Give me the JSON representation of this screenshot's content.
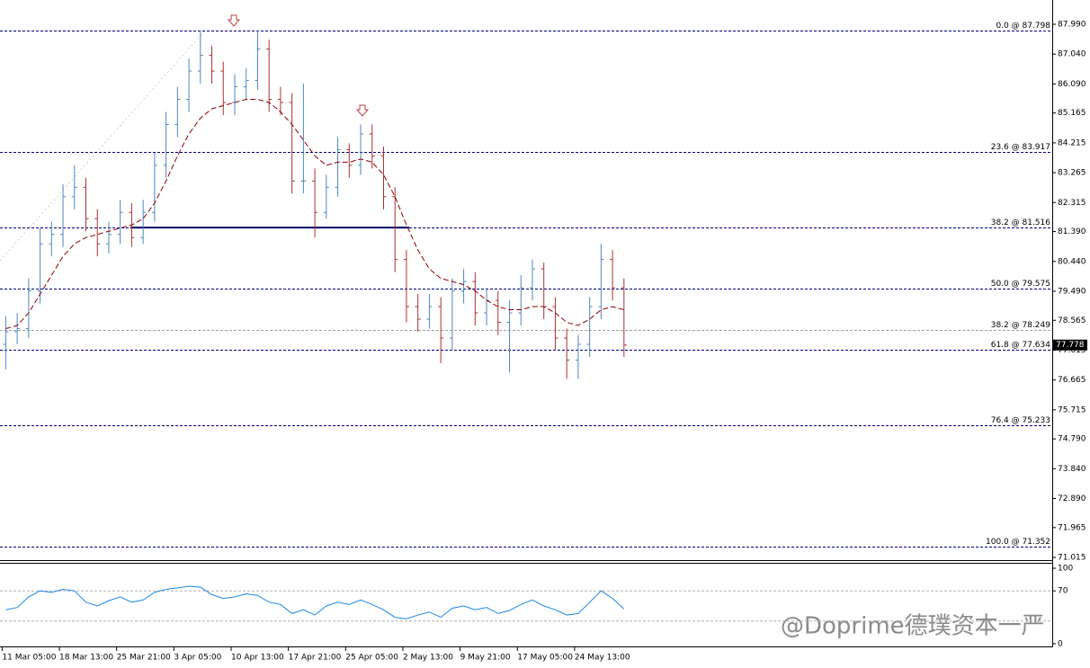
{
  "chart_data": [
    {
      "type": "ohlc",
      "categories": [
        "11 Mar 05:00",
        null,
        null,
        null,
        null,
        "18 Mar 13:00",
        null,
        null,
        null,
        null,
        "25 Mar 21:00",
        null,
        null,
        null,
        null,
        "3 Apr 05:00",
        null,
        null,
        null,
        null,
        "10 Apr 13:00",
        null,
        null,
        null,
        null,
        "17 Apr 21:00",
        null,
        null,
        null,
        null,
        "25 Apr 05:00",
        null,
        null,
        null,
        null,
        "2 May 13:00",
        null,
        null,
        null,
        null,
        "9 May 21:00",
        null,
        null,
        null,
        null,
        "17 May 05:00",
        null,
        null,
        null,
        null,
        "24 May 13:00",
        null,
        null,
        null,
        null
      ],
      "open": [
        77.8,
        78.2,
        78.3,
        79.5,
        81.0,
        81.3,
        82.5,
        82.8,
        81.8,
        81.0,
        81.3,
        82.0,
        81.2,
        82.0,
        83.5,
        84.8,
        85.6,
        86.5,
        87.0,
        86.5,
        85.5,
        86.0,
        86.2,
        87.2,
        85.6,
        85.5,
        83.0,
        83.0,
        82.0,
        82.8,
        84.0,
        83.5,
        84.5,
        83.8,
        82.5,
        80.5,
        79.0,
        78.6,
        79.0,
        78.0,
        79.5,
        79.8,
        78.8,
        79.2,
        78.5,
        78.8,
        79.6,
        80.2,
        79.0,
        78.0,
        77.3,
        77.8,
        79.0,
        80.5,
        79.6
      ],
      "high": [
        78.7,
        78.8,
        79.9,
        81.5,
        81.7,
        82.9,
        83.5,
        83.1,
        82.1,
        81.7,
        82.4,
        82.3,
        82.4,
        83.9,
        85.2,
        86.0,
        86.9,
        87.8,
        87.3,
        86.8,
        86.4,
        86.6,
        87.8,
        87.5,
        86.0,
        85.8,
        86.1,
        83.4,
        83.2,
        84.4,
        84.2,
        84.8,
        84.8,
        84.1,
        82.8,
        80.8,
        79.4,
        79.4,
        79.3,
        79.9,
        80.2,
        80.1,
        79.6,
        79.5,
        79.2,
        80.0,
        80.5,
        80.4,
        79.3,
        78.3,
        78.1,
        79.3,
        81.0,
        80.8,
        79.9
      ],
      "low": [
        77.0,
        77.8,
        78.0,
        79.1,
        80.6,
        80.9,
        82.1,
        81.4,
        80.6,
        80.7,
        81.0,
        80.9,
        81.0,
        81.7,
        83.1,
        84.4,
        85.2,
        86.1,
        86.1,
        85.1,
        85.1,
        85.6,
        85.9,
        85.2,
        85.1,
        82.6,
        82.6,
        81.2,
        81.8,
        82.5,
        83.1,
        83.2,
        83.4,
        82.1,
        80.1,
        78.5,
        78.2,
        78.3,
        77.2,
        77.6,
        79.1,
        78.4,
        78.4,
        78.1,
        76.9,
        78.4,
        79.2,
        78.6,
        77.6,
        76.7,
        76.7,
        77.4,
        78.6,
        79.2,
        77.4
      ],
      "close": [
        78.2,
        78.3,
        79.5,
        81.0,
        81.3,
        82.5,
        82.8,
        81.8,
        81.0,
        81.3,
        82.0,
        81.2,
        82.0,
        83.5,
        84.8,
        85.6,
        86.5,
        87.0,
        86.5,
        85.5,
        86.0,
        86.2,
        87.2,
        85.6,
        85.5,
        83.0,
        83.0,
        82.0,
        82.8,
        84.0,
        83.5,
        84.5,
        83.8,
        82.5,
        80.5,
        79.0,
        78.6,
        79.0,
        78.0,
        79.5,
        79.8,
        78.8,
        79.2,
        78.5,
        78.8,
        79.6,
        80.2,
        79.0,
        78.0,
        77.3,
        77.8,
        79.0,
        80.5,
        79.6,
        77.778
      ],
      "up_color": "#4f86c0",
      "down_color": "#b03030",
      "moving_average": {
        "color": "#8b0000",
        "values": [
          78.3,
          78.4,
          78.8,
          79.4,
          80.0,
          80.6,
          81.0,
          81.2,
          81.3,
          81.4,
          81.5,
          81.6,
          81.8,
          82.3,
          83.0,
          83.8,
          84.5,
          85.0,
          85.3,
          85.4,
          85.5,
          85.6,
          85.6,
          85.5,
          85.2,
          84.8,
          84.3,
          83.8,
          83.5,
          83.6,
          83.6,
          83.7,
          83.6,
          83.2,
          82.5,
          81.6,
          80.8,
          80.2,
          79.9,
          79.8,
          79.7,
          79.5,
          79.2,
          79.0,
          78.9,
          78.9,
          79.0,
          79.0,
          78.8,
          78.5,
          78.4,
          78.6,
          78.9,
          79.0,
          78.9
        ]
      },
      "fib_levels": [
        {
          "value": 87.798,
          "label": "0.0 @ 87.798",
          "color": "#000080"
        },
        {
          "value": 83.917,
          "label": "23.6 @ 83.917",
          "color": "#000080"
        },
        {
          "value": 81.516,
          "label": "38.2 @ 81.516",
          "color": "#000080"
        },
        {
          "value": 79.575,
          "label": "50.0 @ 79.575",
          "color": "#000080"
        },
        {
          "value": 78.249,
          "label": "38.2 @ 78.249",
          "color": "#a0a0a0"
        },
        {
          "value": 77.634,
          "label": "61.8 @ 77.634",
          "color": "#000080"
        },
        {
          "value": 75.233,
          "label": "76.4 @ 75.233",
          "color": "#000080"
        },
        {
          "value": 71.352,
          "label": "100.0 @ 71.352",
          "color": "#000080"
        }
      ],
      "support_line": {
        "value": 81.516,
        "color": "#000066"
      },
      "last_price": 77.778,
      "ylim": [
        70.872,
        88.763
      ],
      "yticks": [
        {
          "value": 87.99,
          "label": "87.990"
        },
        {
          "value": 87.04,
          "label": "87.040"
        },
        {
          "value": 86.09,
          "label": "86.090"
        },
        {
          "value": 85.165,
          "label": "85.165"
        },
        {
          "value": 84.215,
          "label": "84.215"
        },
        {
          "value": 83.265,
          "label": "83.265"
        },
        {
          "value": 82.315,
          "label": "82.315"
        },
        {
          "value": 81.39,
          "label": "81.390"
        },
        {
          "value": 80.44,
          "label": "80.440"
        },
        {
          "value": 79.49,
          "label": "79.490"
        },
        {
          "value": 78.565,
          "label": "78.565"
        },
        {
          "value": 77.615,
          "label": "77.615"
        },
        {
          "value": 76.665,
          "label": "76.665"
        },
        {
          "value": 75.715,
          "label": "75.715"
        },
        {
          "value": 74.79,
          "label": "74.790"
        },
        {
          "value": 73.84,
          "label": "73.840"
        },
        {
          "value": 72.89,
          "label": "72.890"
        },
        {
          "value": 71.965,
          "label": "71.965"
        },
        {
          "value": 71.015,
          "label": "71.015"
        }
      ]
    },
    {
      "type": "line",
      "series": [
        {
          "color": "#1e88e5",
          "values": [
            45,
            48,
            62,
            70,
            68,
            72,
            70,
            55,
            50,
            57,
            62,
            55,
            58,
            68,
            72,
            74,
            76,
            75,
            65,
            60,
            62,
            66,
            64,
            55,
            52,
            40,
            45,
            38,
            50,
            55,
            52,
            58,
            52,
            45,
            35,
            33,
            38,
            42,
            35,
            47,
            50,
            45,
            48,
            40,
            44,
            52,
            58,
            50,
            45,
            38,
            40,
            55,
            70,
            60,
            46
          ]
        }
      ],
      "levels": [
        70,
        30
      ],
      "ylim": [
        0,
        100
      ],
      "yticks": [
        0,
        70,
        100
      ]
    }
  ],
  "watermark": "@Doprime德璞资本一严"
}
